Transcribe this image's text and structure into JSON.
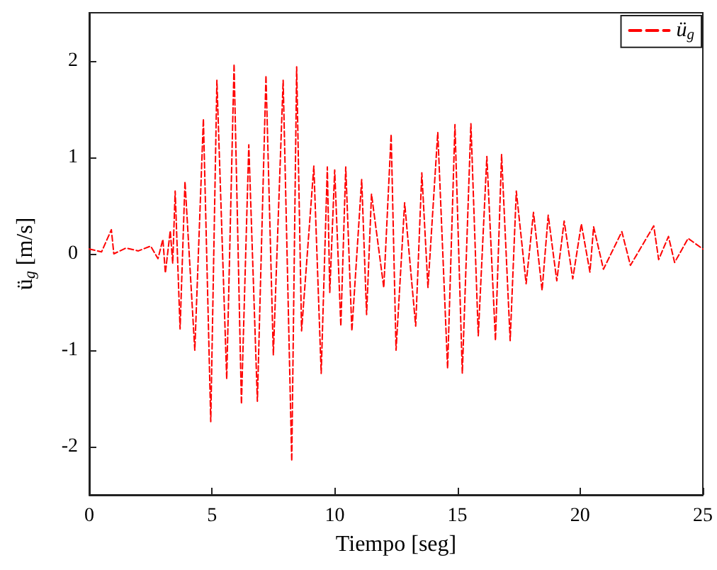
{
  "chart_data": {
    "type": "line",
    "xlabel": "Tiempo [seg]",
    "ylabel": "ü$_{g}$ [m/s]",
    "xlim": [
      0,
      25
    ],
    "xticks": [
      0,
      5,
      10,
      15,
      20,
      25
    ],
    "ylim": [
      -2.5,
      2.5
    ],
    "yticks": [
      -2,
      -1,
      0,
      1,
      2
    ],
    "grid": false,
    "legend": "top right",
    "marker": "none",
    "line_style": "dashed",
    "series": [
      {
        "name": "ü$_{g}$",
        "color": "#ff0000",
        "x": [
          0,
          0.5,
          0.9,
          1.0,
          1.5,
          2.0,
          2.5,
          2.8,
          3.0,
          3.1,
          3.3,
          3.4,
          3.5,
          3.7,
          3.9,
          4.3,
          4.65,
          4.95,
          5.2,
          5.6,
          5.9,
          6.2,
          6.5,
          6.85,
          7.2,
          7.5,
          7.9,
          8.25,
          8.45,
          8.65,
          9.15,
          9.45,
          9.7,
          9.8,
          10.0,
          10.25,
          10.45,
          10.7,
          11.1,
          11.3,
          11.5,
          12.0,
          12.3,
          12.5,
          12.85,
          13.3,
          13.55,
          13.8,
          14.2,
          14.6,
          14.9,
          15.2,
          15.55,
          15.85,
          16.2,
          16.55,
          16.8,
          17.15,
          17.4,
          17.8,
          18.1,
          18.45,
          18.7,
          19.05,
          19.35,
          19.7,
          20.05,
          20.4,
          20.55,
          20.95,
          21.7,
          22.05,
          23.0,
          23.2,
          23.6,
          23.85,
          24.4,
          25
        ],
        "values": [
          0.05,
          0.02,
          0.25,
          0.0,
          0.06,
          0.03,
          0.08,
          -0.05,
          0.15,
          -0.2,
          0.24,
          -0.1,
          0.65,
          -0.78,
          0.75,
          -1.0,
          1.4,
          -1.74,
          1.8,
          -1.3,
          1.97,
          -1.56,
          1.13,
          -1.53,
          1.85,
          -1.05,
          1.8,
          -2.15,
          1.94,
          -0.8,
          0.91,
          -1.24,
          0.9,
          -0.4,
          0.87,
          -0.75,
          0.9,
          -0.8,
          0.77,
          -0.63,
          0.62,
          -0.35,
          1.24,
          -1.0,
          0.53,
          -0.75,
          0.84,
          -0.35,
          1.26,
          -1.19,
          1.34,
          -1.24,
          1.35,
          -0.85,
          1.01,
          -0.9,
          1.03,
          -0.9,
          0.65,
          -0.31,
          0.43,
          -0.38,
          0.4,
          -0.28,
          0.34,
          -0.26,
          0.31,
          -0.19,
          0.28,
          -0.16,
          0.23,
          -0.12,
          0.29,
          -0.06,
          0.18,
          -0.09,
          0.16,
          0.05
        ]
      }
    ]
  }
}
